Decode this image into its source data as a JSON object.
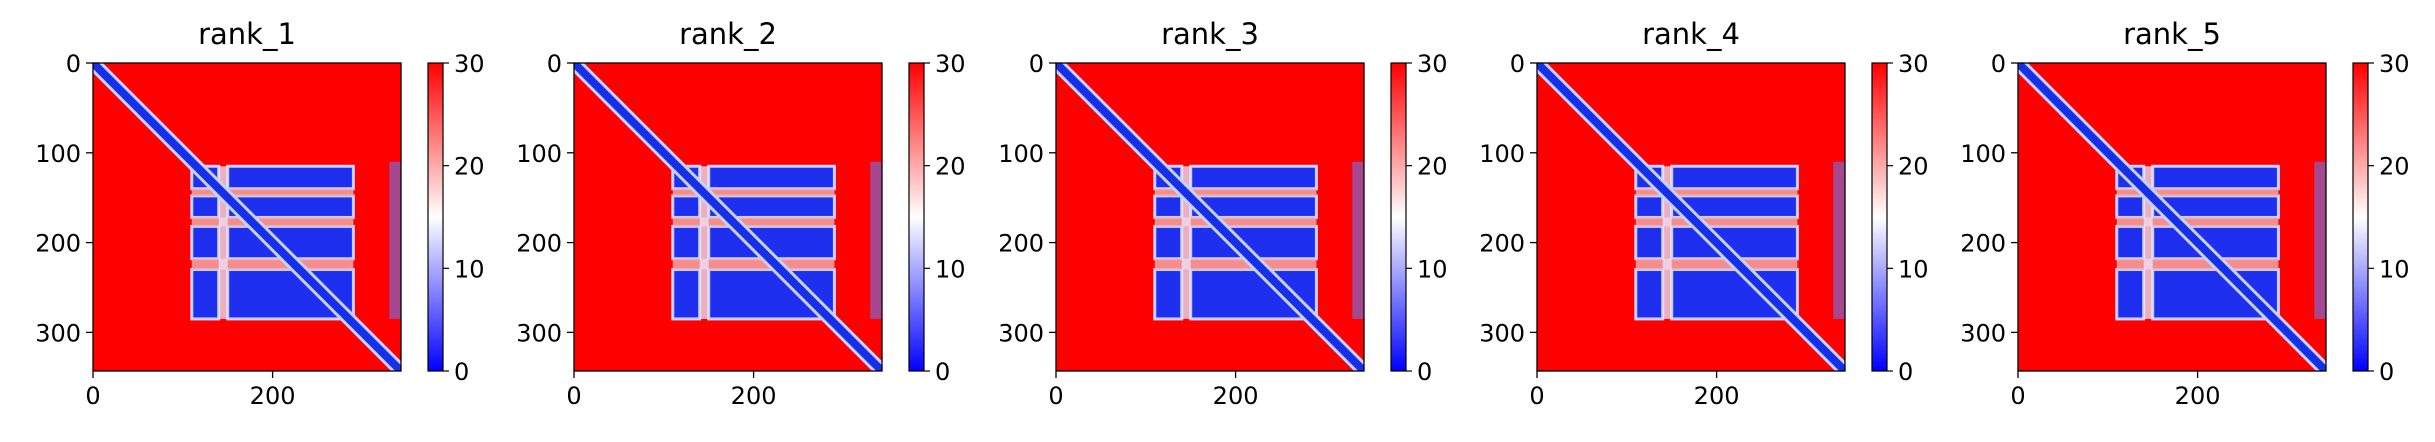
{
  "chart_data": {
    "type": "heatmap",
    "colormap": {
      "name": "bwr",
      "low_color": "#0000ff",
      "mid_color": "#ffffff",
      "high_color": "#ff0000"
    },
    "value_range": [
      0,
      30
    ],
    "colorbar_ticks": [
      "0",
      "10",
      "20",
      "30"
    ],
    "x_ticks": [
      "0",
      "200"
    ],
    "y_ticks": [
      "0",
      "100",
      "200",
      "300"
    ],
    "x_tick_values": [
      0,
      200
    ],
    "y_tick_values": [
      0,
      100,
      200,
      300
    ],
    "x_range": [
      0,
      343
    ],
    "y_range": [
      0,
      343
    ],
    "features": {
      "diagonal_band": true,
      "blue_block_rows": [
        [
          115,
          140
        ],
        [
          148,
          172
        ],
        [
          182,
          218
        ],
        [
          230,
          285
        ]
      ],
      "blue_block_columns": [
        [
          110,
          140
        ],
        [
          150,
          290
        ]
      ],
      "edge_column": [
        330,
        343
      ]
    },
    "panels": [
      {
        "title": "rank_1"
      },
      {
        "title": "rank_2"
      },
      {
        "title": "rank_3"
      },
      {
        "title": "rank_4"
      },
      {
        "title": "rank_5"
      }
    ]
  }
}
